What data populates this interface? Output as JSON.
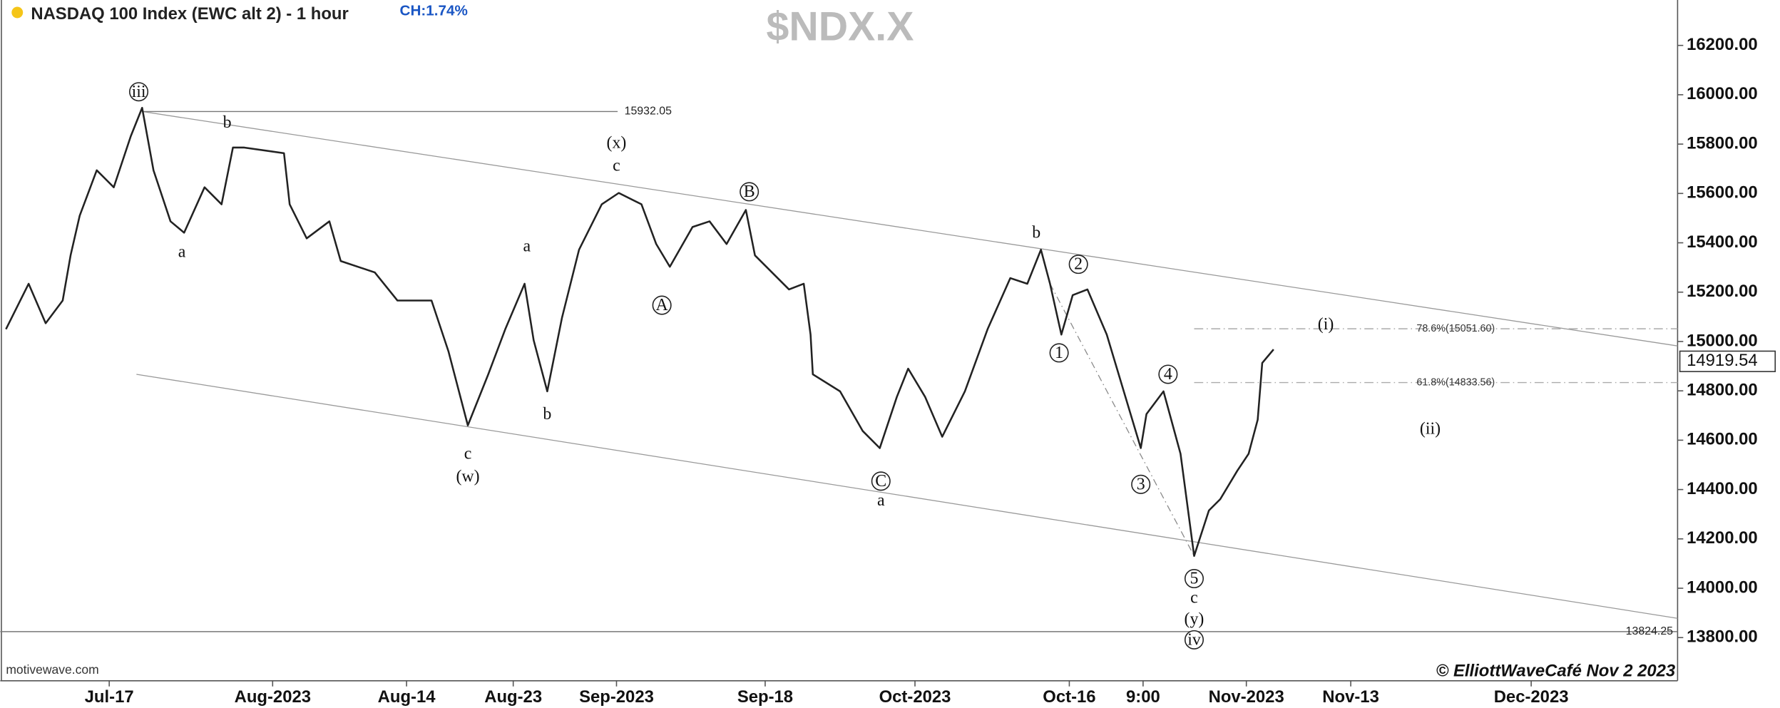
{
  "chart_data": {
    "type": "price",
    "title": "NASDAQ 100 Index (EWC alt 2) - 1 hour",
    "change": "CH:1.74%",
    "symbol": "$NDX.X",
    "source": "motivewave.com",
    "copyright": "© ElliottWaveCafé Nov 2 2023",
    "color": "#222222",
    "xlim": [
      0,
      739
    ],
    "ylim": [
      13625,
      16384
    ],
    "xticks": [
      {
        "value": 48,
        "label": "Jul-17"
      },
      {
        "value": 120,
        "label": "Aug-2023"
      },
      {
        "value": 179,
        "label": "Aug-14"
      },
      {
        "value": 226,
        "label": "Aug-23"
      },
      {
        "value": 271.5,
        "label": "Sep-2023"
      },
      {
        "value": 337,
        "label": "Sep-18"
      },
      {
        "value": 403,
        "label": "Oct-2023"
      },
      {
        "value": 471,
        "label": "Oct-16"
      },
      {
        "value": 503.5,
        "label": "9:00"
      },
      {
        "value": 549,
        "label": "Nov-2023"
      },
      {
        "value": 595,
        "label": "Nov-13"
      },
      {
        "value": 674.5,
        "label": "Dec-2023"
      }
    ],
    "yticks": [
      {
        "value": 13800,
        "label": "13800.00"
      },
      {
        "value": 14000,
        "label": "14000.00"
      },
      {
        "value": 14200,
        "label": "14200.00"
      },
      {
        "value": 14400,
        "label": "14400.00"
      },
      {
        "value": 14600,
        "label": "14600.00"
      },
      {
        "value": 14800,
        "label": "14800.00"
      },
      {
        "value": 15000,
        "label": "15000.00"
      },
      {
        "value": 15200,
        "label": "15200.00"
      },
      {
        "value": 15400,
        "label": "15400.00"
      },
      {
        "value": 15600,
        "label": "15600.00"
      },
      {
        "value": 15800,
        "label": "15800.00"
      },
      {
        "value": 16000,
        "label": "16000.00"
      },
      {
        "value": 16200,
        "label": "16200.00"
      }
    ],
    "x": [
      2.5,
      12.5,
      20,
      27.5,
      31,
      35,
      42.5,
      50,
      57.5,
      62.5,
      67.5,
      75,
      81,
      90,
      97.5,
      102.5,
      107.5,
      125,
      127.5,
      135,
      145,
      150,
      165,
      175,
      190,
      197.5,
      206,
      215,
      222.5,
      231,
      235,
      241,
      247.5,
      255,
      265,
      272.5,
      282.5,
      289,
      295,
      305,
      312.5,
      320,
      328.5,
      332.5,
      340,
      347.5,
      354,
      357,
      358,
      370,
      380,
      387.5,
      395,
      400,
      407.5,
      415,
      425,
      435,
      445,
      452.5,
      458.5,
      462.5,
      467.5,
      472.5,
      479,
      487.5,
      495,
      502.5,
      505,
      512.5,
      520,
      526,
      532.5,
      537.5,
      545,
      550,
      554,
      556,
      561
    ],
    "values": [
      15050,
      15234,
      15074,
      15166,
      15350,
      15510,
      15694,
      15625,
      15832,
      15947,
      15694,
      15487,
      15441,
      15625,
      15556,
      15786,
      15786,
      15763,
      15556,
      15418,
      15487,
      15326,
      15280,
      15166,
      15166,
      14959,
      14660,
      14867,
      15050,
      15234,
      15005,
      14798,
      15097,
      15372,
      15556,
      15602,
      15556,
      15395,
      15303,
      15464,
      15487,
      15395,
      15533,
      15349,
      15280,
      15211,
      15234,
      15028,
      14867,
      14798,
      14637,
      14568,
      14775,
      14890,
      14775,
      14614,
      14798,
      15050,
      15257,
      15234,
      15372,
      15234,
      15028,
      15188,
      15211,
      15028,
      14798,
      14568,
      14706,
      14798,
      14545,
      14131,
      14315,
      14361,
      14476,
      14545,
      14683,
      14913,
      14968
    ],
    "levels": [
      {
        "value": 15932.05,
        "from": 62.5,
        "to": 272
      },
      {
        "value": 13824.25,
        "from": 0,
        "to": 739
      },
      {
        "value": 15051.6,
        "label": "78.6%(15051.60)",
        "from": 526,
        "to": 739
      },
      {
        "value": 14833.56,
        "label": "61.8%(14833.56)",
        "from": 526,
        "to": 739
      }
    ],
    "last_price": 14919.54,
    "trendlines": [
      {
        "x": [
          62.5,
          739
        ],
        "y": [
          15932,
          14982
        ]
      },
      {
        "x": [
          60,
          739
        ],
        "y": [
          14867,
          13878
        ]
      },
      {
        "x": [
          462.5,
          526
        ],
        "y": [
          15234,
          14131
        ]
      }
    ],
    "annotations": [
      {
        "text": "iii",
        "x": 61,
        "y": 16012,
        "circled": true
      },
      {
        "text": "b",
        "x": 100,
        "y": 15887
      },
      {
        "text": "a",
        "x": 80,
        "y": 15363
      },
      {
        "text": "(x)",
        "x": 271.5,
        "y": 15805
      },
      {
        "text": "c",
        "x": 271.5,
        "y": 15713
      },
      {
        "text": "B",
        "x": 330,
        "y": 15607,
        "circled": true
      },
      {
        "text": "a",
        "x": 232,
        "y": 15386
      },
      {
        "text": "A",
        "x": 291.5,
        "y": 15147,
        "circled": true
      },
      {
        "text": "b",
        "x": 241,
        "y": 14706
      },
      {
        "text": "c",
        "x": 206,
        "y": 14545
      },
      {
        "text": "(w)",
        "x": 206,
        "y": 14453
      },
      {
        "text": "b",
        "x": 456.5,
        "y": 15441
      },
      {
        "text": "2",
        "x": 475,
        "y": 15313,
        "circled": true
      },
      {
        "text": "1",
        "x": 466.5,
        "y": 14954,
        "circled": true
      },
      {
        "text": "4",
        "x": 514.5,
        "y": 14867,
        "circled": true
      },
      {
        "text": "3",
        "x": 502.5,
        "y": 14421,
        "circled": true
      },
      {
        "text": "C",
        "x": 388,
        "y": 14434,
        "circled": true
      },
      {
        "text": "a",
        "x": 388,
        "y": 14356
      },
      {
        "text": "5",
        "x": 526,
        "y": 14039,
        "circled": true
      },
      {
        "text": "c",
        "x": 526,
        "y": 13961
      },
      {
        "text": "(y)",
        "x": 526,
        "y": 13874
      },
      {
        "text": "iv",
        "x": 526,
        "y": 13791,
        "circled": true
      },
      {
        "text": "(i)",
        "x": 584,
        "y": 15069
      },
      {
        "text": "(ii)",
        "x": 630,
        "y": 14646
      }
    ]
  }
}
